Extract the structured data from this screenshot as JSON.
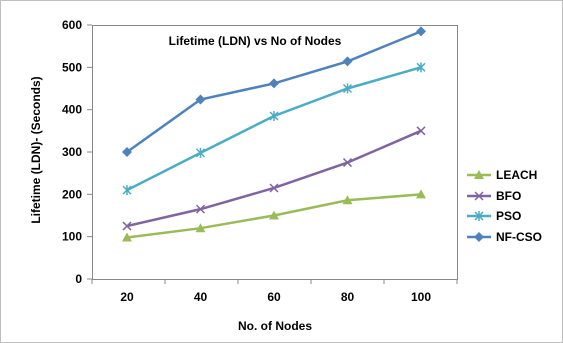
{
  "chart_data": {
    "type": "line",
    "title": "Lifetime (LDN) vs No of Nodes",
    "xlabel": "No. of Nodes",
    "ylabel": "Lifetime (LDN)- (Seconds)",
    "x": [
      20,
      40,
      60,
      80,
      100
    ],
    "ylim": [
      0,
      600
    ],
    "yticks": [
      0,
      100,
      200,
      300,
      400,
      500,
      600
    ],
    "grid": "horizontal-none",
    "legend_position": "right",
    "series": [
      {
        "name": "LEACH",
        "values": [
          98,
          120,
          150,
          186,
          200
        ],
        "color": "#9bbb59",
        "marker": "triangle"
      },
      {
        "name": "BFO",
        "values": [
          125,
          165,
          215,
          275,
          350
        ],
        "color": "#8064a2",
        "marker": "x"
      },
      {
        "name": "PSO",
        "values": [
          210,
          298,
          385,
          450,
          500
        ],
        "color": "#4bacc6",
        "marker": "star"
      },
      {
        "name": "NF-CSO",
        "values": [
          300,
          424,
          462,
          514,
          585
        ],
        "color": "#4f81bd",
        "marker": "diamond"
      }
    ]
  }
}
